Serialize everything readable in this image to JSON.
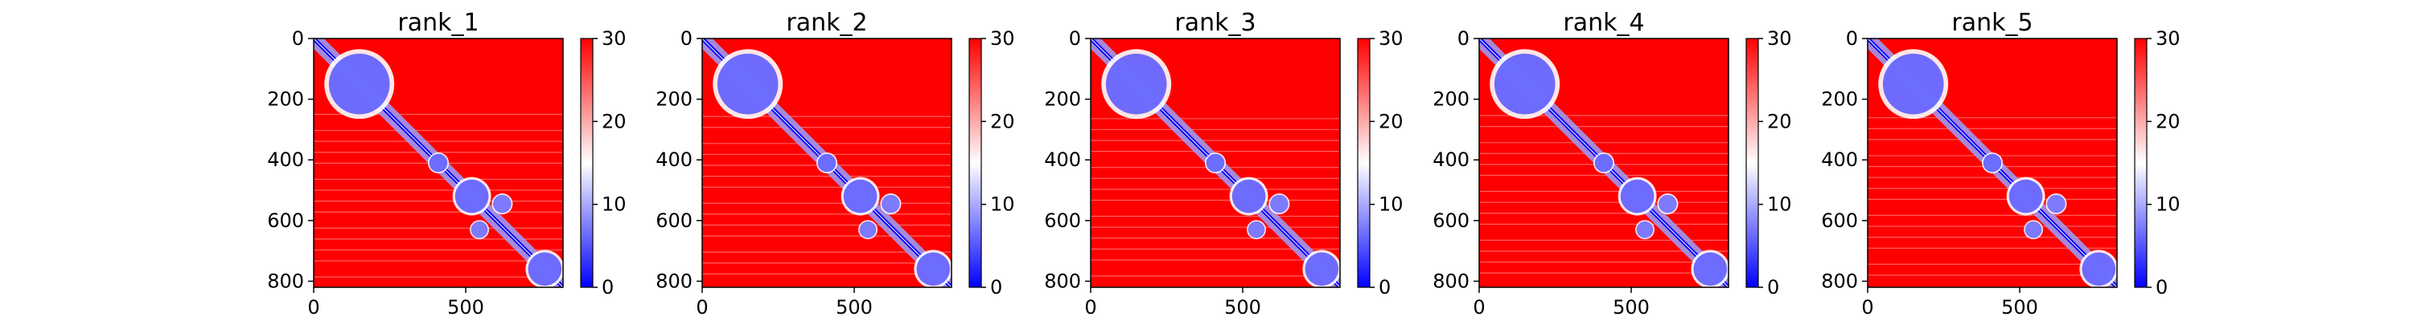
{
  "chart_data": [
    {
      "type": "heatmap",
      "title": "rank_1",
      "x_ticks": [
        0,
        500
      ],
      "y_ticks": [
        0,
        200,
        400,
        600,
        800
      ],
      "xlim": [
        0,
        820
      ],
      "ylim": [
        820,
        0
      ],
      "colorbar": {
        "range": [
          0,
          30
        ],
        "ticks": [
          0,
          10,
          20,
          30
        ],
        "colormap": "bwr"
      },
      "features": [
        {
          "kind": "diagonal_band",
          "from": [
            0,
            0
          ],
          "to": [
            820,
            820
          ],
          "value": 0
        },
        {
          "kind": "blob",
          "center": [
            150,
            150
          ],
          "size": 200,
          "value": 5
        },
        {
          "kind": "blob",
          "center": [
            410,
            410
          ],
          "size": 60,
          "value": 5
        },
        {
          "kind": "blob",
          "center": [
            520,
            520
          ],
          "size": 110,
          "value": 5
        },
        {
          "kind": "blob",
          "center": [
            620,
            545
          ],
          "size": 60,
          "value": 6
        },
        {
          "kind": "blob",
          "center": [
            545,
            630
          ],
          "size": 55,
          "value": 6
        },
        {
          "kind": "blob",
          "center": [
            760,
            760
          ],
          "size": 110,
          "value": 5
        }
      ]
    },
    {
      "type": "heatmap",
      "title": "rank_2",
      "x_ticks": [
        0,
        500
      ],
      "y_ticks": [
        0,
        200,
        400,
        600,
        800
      ],
      "xlim": [
        0,
        820
      ],
      "ylim": [
        820,
        0
      ],
      "colorbar": {
        "range": [
          0,
          30
        ],
        "ticks": [
          0,
          10,
          20,
          30
        ],
        "colormap": "bwr"
      },
      "features": [
        {
          "kind": "diagonal_band",
          "from": [
            0,
            0
          ],
          "to": [
            820,
            820
          ],
          "value": 0
        },
        {
          "kind": "blob",
          "center": [
            150,
            150
          ],
          "size": 200,
          "value": 5
        },
        {
          "kind": "blob",
          "center": [
            410,
            410
          ],
          "size": 60,
          "value": 5
        },
        {
          "kind": "blob",
          "center": [
            520,
            520
          ],
          "size": 110,
          "value": 5
        },
        {
          "kind": "blob",
          "center": [
            620,
            545
          ],
          "size": 60,
          "value": 6
        },
        {
          "kind": "blob",
          "center": [
            545,
            630
          ],
          "size": 55,
          "value": 6
        },
        {
          "kind": "blob",
          "center": [
            760,
            760
          ],
          "size": 110,
          "value": 5
        }
      ]
    },
    {
      "type": "heatmap",
      "title": "rank_3",
      "x_ticks": [
        0,
        500
      ],
      "y_ticks": [
        0,
        200,
        400,
        600,
        800
      ],
      "xlim": [
        0,
        820
      ],
      "ylim": [
        820,
        0
      ],
      "colorbar": {
        "range": [
          0,
          30
        ],
        "ticks": [
          0,
          10,
          20,
          30
        ],
        "colormap": "bwr"
      },
      "features": [
        {
          "kind": "diagonal_band",
          "from": [
            0,
            0
          ],
          "to": [
            820,
            820
          ],
          "value": 0
        },
        {
          "kind": "blob",
          "center": [
            150,
            150
          ],
          "size": 200,
          "value": 5
        },
        {
          "kind": "blob",
          "center": [
            410,
            410
          ],
          "size": 60,
          "value": 5
        },
        {
          "kind": "blob",
          "center": [
            520,
            520
          ],
          "size": 110,
          "value": 5
        },
        {
          "kind": "blob",
          "center": [
            620,
            545
          ],
          "size": 60,
          "value": 6
        },
        {
          "kind": "blob",
          "center": [
            545,
            630
          ],
          "size": 55,
          "value": 6
        },
        {
          "kind": "blob",
          "center": [
            760,
            760
          ],
          "size": 110,
          "value": 5
        }
      ]
    },
    {
      "type": "heatmap",
      "title": "rank_4",
      "x_ticks": [
        0,
        500
      ],
      "y_ticks": [
        0,
        200,
        400,
        600,
        800
      ],
      "xlim": [
        0,
        820
      ],
      "ylim": [
        820,
        0
      ],
      "colorbar": {
        "range": [
          0,
          30
        ],
        "ticks": [
          0,
          10,
          20,
          30
        ],
        "colormap": "bwr"
      },
      "features": [
        {
          "kind": "diagonal_band",
          "from": [
            0,
            0
          ],
          "to": [
            820,
            820
          ],
          "value": 0
        },
        {
          "kind": "blob",
          "center": [
            150,
            150
          ],
          "size": 200,
          "value": 5
        },
        {
          "kind": "blob",
          "center": [
            410,
            410
          ],
          "size": 60,
          "value": 5
        },
        {
          "kind": "blob",
          "center": [
            520,
            520
          ],
          "size": 110,
          "value": 5
        },
        {
          "kind": "blob",
          "center": [
            620,
            545
          ],
          "size": 60,
          "value": 6
        },
        {
          "kind": "blob",
          "center": [
            545,
            630
          ],
          "size": 55,
          "value": 6
        },
        {
          "kind": "blob",
          "center": [
            760,
            760
          ],
          "size": 110,
          "value": 5
        }
      ]
    },
    {
      "type": "heatmap",
      "title": "rank_5",
      "x_ticks": [
        0,
        500
      ],
      "y_ticks": [
        0,
        200,
        400,
        600,
        800
      ],
      "xlim": [
        0,
        820
      ],
      "ylim": [
        820,
        0
      ],
      "colorbar": {
        "range": [
          0,
          30
        ],
        "ticks": [
          0,
          10,
          20,
          30
        ],
        "colormap": "bwr"
      },
      "features": [
        {
          "kind": "diagonal_band",
          "from": [
            0,
            0
          ],
          "to": [
            820,
            820
          ],
          "value": 0
        },
        {
          "kind": "blob",
          "center": [
            150,
            150
          ],
          "size": 200,
          "value": 5
        },
        {
          "kind": "blob",
          "center": [
            410,
            410
          ],
          "size": 60,
          "value": 5
        },
        {
          "kind": "blob",
          "center": [
            520,
            520
          ],
          "size": 110,
          "value": 5
        },
        {
          "kind": "blob",
          "center": [
            620,
            545
          ],
          "size": 60,
          "value": 6
        },
        {
          "kind": "blob",
          "center": [
            545,
            630
          ],
          "size": 55,
          "value": 6
        },
        {
          "kind": "blob",
          "center": [
            760,
            760
          ],
          "size": 110,
          "value": 5
        }
      ]
    }
  ],
  "colors": {
    "low": "#0000ff",
    "mid": "#ffffff",
    "high": "#ff0000",
    "axis": "#000000"
  }
}
